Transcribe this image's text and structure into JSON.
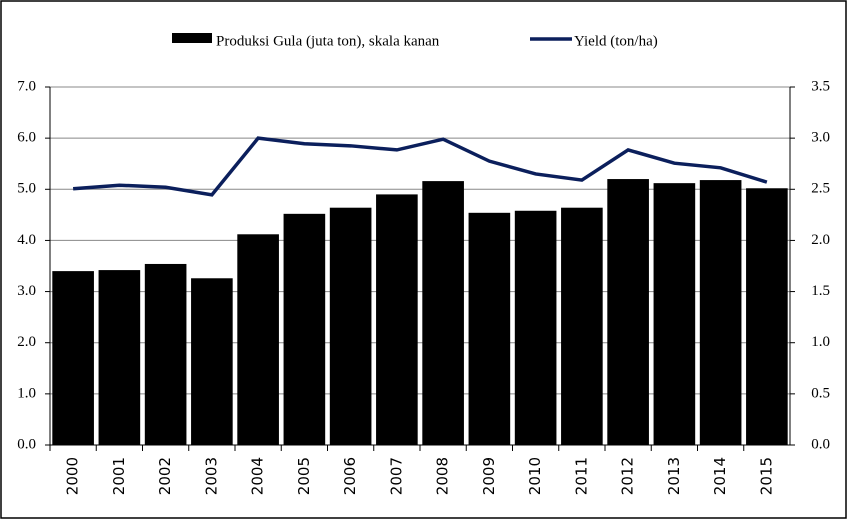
{
  "chart_data": {
    "type": "bar-line",
    "categories": [
      "2000",
      "2001",
      "2002",
      "2003",
      "2004",
      "2005",
      "2006",
      "2007",
      "2008",
      "2009",
      "2010",
      "2011",
      "2012",
      "2013",
      "2014",
      "2015"
    ],
    "series": [
      {
        "name": "Produksi Gula (juta ton), skala kanan",
        "type": "bar",
        "axis": "y2",
        "color": "#000000",
        "values": [
          1.7,
          1.71,
          1.77,
          1.63,
          2.06,
          2.26,
          2.32,
          2.45,
          2.58,
          2.27,
          2.29,
          2.32,
          2.6,
          2.56,
          2.59,
          2.51
        ]
      },
      {
        "name": "Yield (ton/ha)",
        "type": "line",
        "axis": "y",
        "color": "#0b1f5c",
        "values": [
          5.01,
          5.08,
          5.04,
          4.89,
          6.0,
          5.89,
          5.85,
          5.77,
          5.98,
          5.55,
          5.3,
          5.18,
          5.77,
          5.51,
          5.42,
          5.14
        ]
      }
    ],
    "ylim": [
      0,
      7
    ],
    "yticks": [
      {
        "value": 0,
        "label": "0.0"
      },
      {
        "value": 1,
        "label": "1.0"
      },
      {
        "value": 2,
        "label": "2.0"
      },
      {
        "value": 3,
        "label": "3.0"
      },
      {
        "value": 4,
        "label": "4.0"
      },
      {
        "value": 5,
        "label": "5.0"
      },
      {
        "value": 6,
        "label": "6.0"
      },
      {
        "value": 7,
        "label": "7.0"
      }
    ],
    "y2lim": [
      0,
      3.5
    ],
    "y2ticks": [
      {
        "value": 0,
        "label": "0.0"
      },
      {
        "value": 0.5,
        "label": "0.5"
      },
      {
        "value": 1,
        "label": "1.0"
      },
      {
        "value": 1.5,
        "label": "1.5"
      },
      {
        "value": 2,
        "label": "2.0"
      },
      {
        "value": 2.5,
        "label": "2.5"
      },
      {
        "value": 3,
        "label": "3.0"
      },
      {
        "value": 3.5,
        "label": "3.5"
      }
    ],
    "grid": true,
    "legend": "top"
  }
}
